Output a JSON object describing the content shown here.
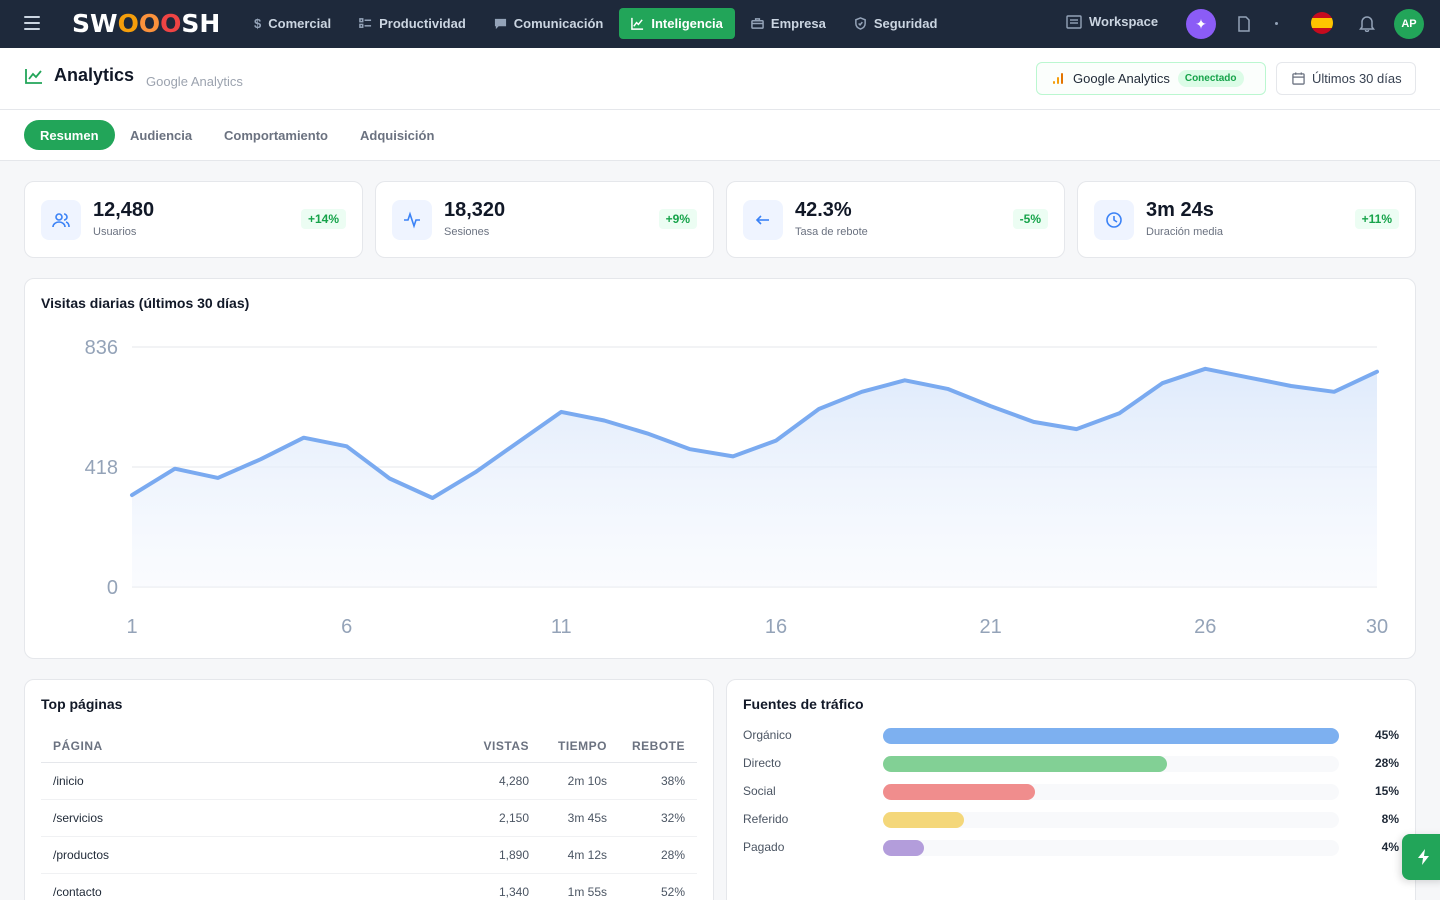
{
  "app": {
    "logo_text": [
      "SW",
      "O",
      "O",
      "O",
      "SH"
    ]
  },
  "nav": {
    "items": [
      {
        "label": "Comercial",
        "icon": "dollar-icon",
        "active": false
      },
      {
        "label": "Productividad",
        "icon": "checklist-icon",
        "active": false
      },
      {
        "label": "Comunicación",
        "icon": "chat-icon",
        "active": false
      },
      {
        "label": "Inteligencia",
        "icon": "chart-line-icon",
        "active": true
      },
      {
        "label": "Empresa",
        "icon": "briefcase-icon",
        "active": false
      },
      {
        "label": "Seguridad",
        "icon": "shield-icon",
        "active": false
      }
    ],
    "workspace": "Workspace",
    "avatar_initials": "AP"
  },
  "header": {
    "title": "Analytics",
    "subtitle": "Google Analytics",
    "ga_label": "Google Analytics",
    "ga_status": "Conectado",
    "date_range": "Últimos 30 días"
  },
  "tabs": [
    {
      "label": "Resumen",
      "active": true
    },
    {
      "label": "Audiencia",
      "active": false
    },
    {
      "label": "Comportamiento",
      "active": false
    },
    {
      "label": "Adquisición",
      "active": false
    }
  ],
  "kpis": [
    {
      "value": "12,480",
      "label": "Usuarios",
      "change": "+14%",
      "icon": "users-icon"
    },
    {
      "value": "18,320",
      "label": "Sesiones",
      "change": "+9%",
      "icon": "activity-icon"
    },
    {
      "value": "42.3%",
      "label": "Tasa de rebote",
      "change": "-5%",
      "icon": "arrow-left-icon"
    },
    {
      "value": "3m 24s",
      "label": "Duración media",
      "change": "+11%",
      "icon": "clock-icon"
    }
  ],
  "chart": {
    "title": "Visitas diarias (últimos 30 días)"
  },
  "chart_data": {
    "type": "area",
    "x": [
      1,
      2,
      3,
      4,
      5,
      6,
      7,
      8,
      9,
      10,
      11,
      12,
      13,
      14,
      15,
      16,
      17,
      18,
      19,
      20,
      21,
      22,
      23,
      24,
      25,
      26,
      27,
      28,
      29,
      30
    ],
    "series": [
      {
        "values": [
          320,
          412,
          380,
          445,
          520,
          490,
          378,
          310,
          400,
          505,
          610,
          580,
          535,
          480,
          455,
          510,
          620,
          680,
          720,
          690,
          630,
          575,
          550,
          605,
          710,
          760,
          730,
          700,
          680,
          750
        ]
      }
    ],
    "x_ticks": [
      1,
      6,
      11,
      16,
      21,
      26,
      30
    ],
    "y_ticks": [
      0,
      418,
      836
    ],
    "ylim": [
      0,
      836
    ],
    "grid": true,
    "color": "#7aaaf0"
  },
  "top_pages": {
    "title": "Top páginas",
    "columns": [
      "PÁGINA",
      "VISTAS",
      "TIEMPO",
      "REBOTE"
    ],
    "rows": [
      [
        "/inicio",
        "4,280",
        "2m 10s",
        "38%"
      ],
      [
        "/servicios",
        "2,150",
        "3m 45s",
        "32%"
      ],
      [
        "/productos",
        "1,890",
        "4m 12s",
        "28%"
      ],
      [
        "/contacto",
        "1,340",
        "1m 55s",
        "52%"
      ]
    ]
  },
  "traffic_sources": {
    "title": "Fuentes de tráfico",
    "items": [
      {
        "name": "Orgánico",
        "pct_label": "45%",
        "fraction": 1.0,
        "color": "#7db0f0"
      },
      {
        "name": "Directo",
        "pct_label": "28%",
        "fraction": 0.622,
        "color": "#82d095"
      },
      {
        "name": "Social",
        "pct_label": "15%",
        "fraction": 0.333,
        "color": "#f08d8d"
      },
      {
        "name": "Referido",
        "pct_label": "8%",
        "fraction": 0.178,
        "color": "#f4d77a"
      },
      {
        "name": "Pagado",
        "pct_label": "4%",
        "fraction": 0.089,
        "color": "#b39ddb"
      }
    ]
  }
}
